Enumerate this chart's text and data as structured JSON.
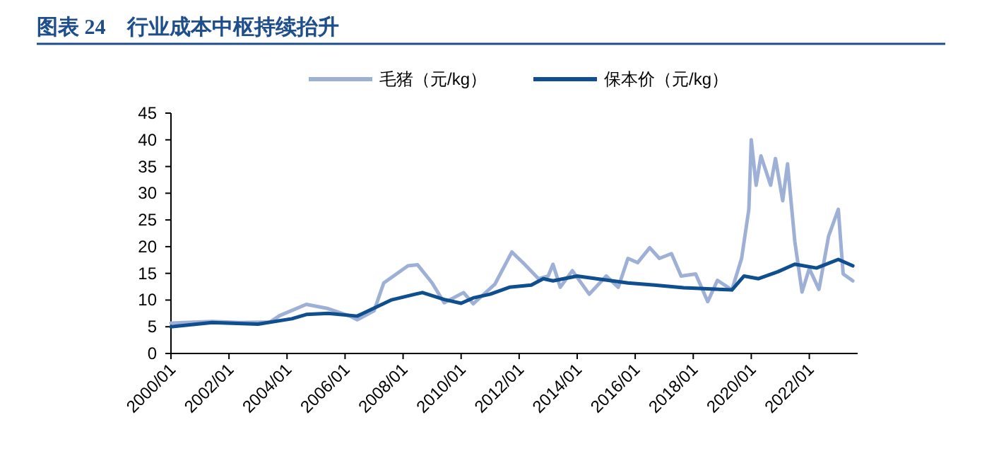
{
  "chart_data": {
    "type": "line",
    "title": "图表 24　行业成本中枢持续抬升",
    "legend": "top",
    "xlim": [
      "2000-01",
      "2023-09"
    ],
    "ylim": [
      0,
      45
    ],
    "yticks": [
      0,
      5,
      10,
      15,
      20,
      25,
      30,
      35,
      40,
      45
    ],
    "xticks": [
      {
        "value": "2000-01",
        "label": "2000/01"
      },
      {
        "value": "2002-01",
        "label": "2002/01"
      },
      {
        "value": "2004-01",
        "label": "2004/01"
      },
      {
        "value": "2006-01",
        "label": "2006/01"
      },
      {
        "value": "2008-01",
        "label": "2008/01"
      },
      {
        "value": "2010-01",
        "label": "2010/01"
      },
      {
        "value": "2012-01",
        "label": "2012/01"
      },
      {
        "value": "2014-01",
        "label": "2014/01"
      },
      {
        "value": "2016-01",
        "label": "2016/01"
      },
      {
        "value": "2018-01",
        "label": "2018/01"
      },
      {
        "value": "2020-01",
        "label": "2020/01"
      },
      {
        "value": "2022-01",
        "label": "2022/01"
      }
    ],
    "series": [
      {
        "name": "毛猪（元/kg）",
        "color": "#9fb0d6",
        "x": [
          "2000-01",
          "2001-06",
          "2002-06",
          "2003-06",
          "2003-10",
          "2004-09",
          "2005-06",
          "2006-03",
          "2006-06",
          "2007-01",
          "2007-05",
          "2008-03",
          "2008-07",
          "2009-01",
          "2009-06",
          "2010-02",
          "2010-06",
          "2011-03",
          "2011-10",
          "2012-03",
          "2012-09",
          "2013-01",
          "2013-03",
          "2013-06",
          "2013-11",
          "2014-06",
          "2015-01",
          "2015-06",
          "2015-10",
          "2016-02",
          "2016-07",
          "2016-11",
          "2017-04",
          "2017-08",
          "2018-02",
          "2018-07",
          "2018-11",
          "2019-05",
          "2019-09",
          "2019-12",
          "2020-01",
          "2020-03",
          "2020-05",
          "2020-09",
          "2020-11",
          "2021-02",
          "2021-04",
          "2021-07",
          "2021-10",
          "2022-01",
          "2022-05",
          "2022-09",
          "2023-01",
          "2023-03",
          "2023-07"
        ],
        "values": [
          5.7,
          6.0,
          5.8,
          5.9,
          7.1,
          9.2,
          8.4,
          7.0,
          6.3,
          8.0,
          13.2,
          16.4,
          16.6,
          13.2,
          9.5,
          11.4,
          9.3,
          13.0,
          19.0,
          16.8,
          14.0,
          14.5,
          16.7,
          12.4,
          15.5,
          11.1,
          14.5,
          12.4,
          17.8,
          17.0,
          19.8,
          17.8,
          18.7,
          14.5,
          14.9,
          9.7,
          13.7,
          11.9,
          17.8,
          27,
          40,
          31.5,
          37,
          31.5,
          36.5,
          28.6,
          35.5,
          21,
          11.5,
          15.9,
          12,
          22,
          27,
          14.9,
          13.6
        ]
      },
      {
        "name": "保本价（元/kg）",
        "color": "#0f4f8f",
        "x": [
          "2000-01",
          "2001-06",
          "2003-01",
          "2004-03",
          "2004-09",
          "2005-06",
          "2006-06",
          "2007-08",
          "2008-06",
          "2008-09",
          "2009-06",
          "2010-01",
          "2010-06",
          "2011-01",
          "2011-09",
          "2012-06",
          "2012-11",
          "2013-03",
          "2014-01",
          "2014-09",
          "2015-10",
          "2016-09",
          "2017-09",
          "2019-05",
          "2019-10",
          "2020-04",
          "2020-12",
          "2021-07",
          "2022-04",
          "2023-01",
          "2023-07"
        ],
        "values": [
          5.0,
          5.8,
          5.5,
          6.5,
          7.3,
          7.5,
          7.0,
          10.0,
          11.1,
          11.4,
          10.1,
          9.4,
          10.4,
          11.1,
          12.4,
          12.8,
          14.0,
          13.6,
          14.5,
          14.0,
          13.2,
          12.8,
          12.3,
          11.9,
          14.5,
          14.0,
          15.3,
          16.7,
          16.0,
          17.6,
          16.4
        ]
      }
    ]
  }
}
